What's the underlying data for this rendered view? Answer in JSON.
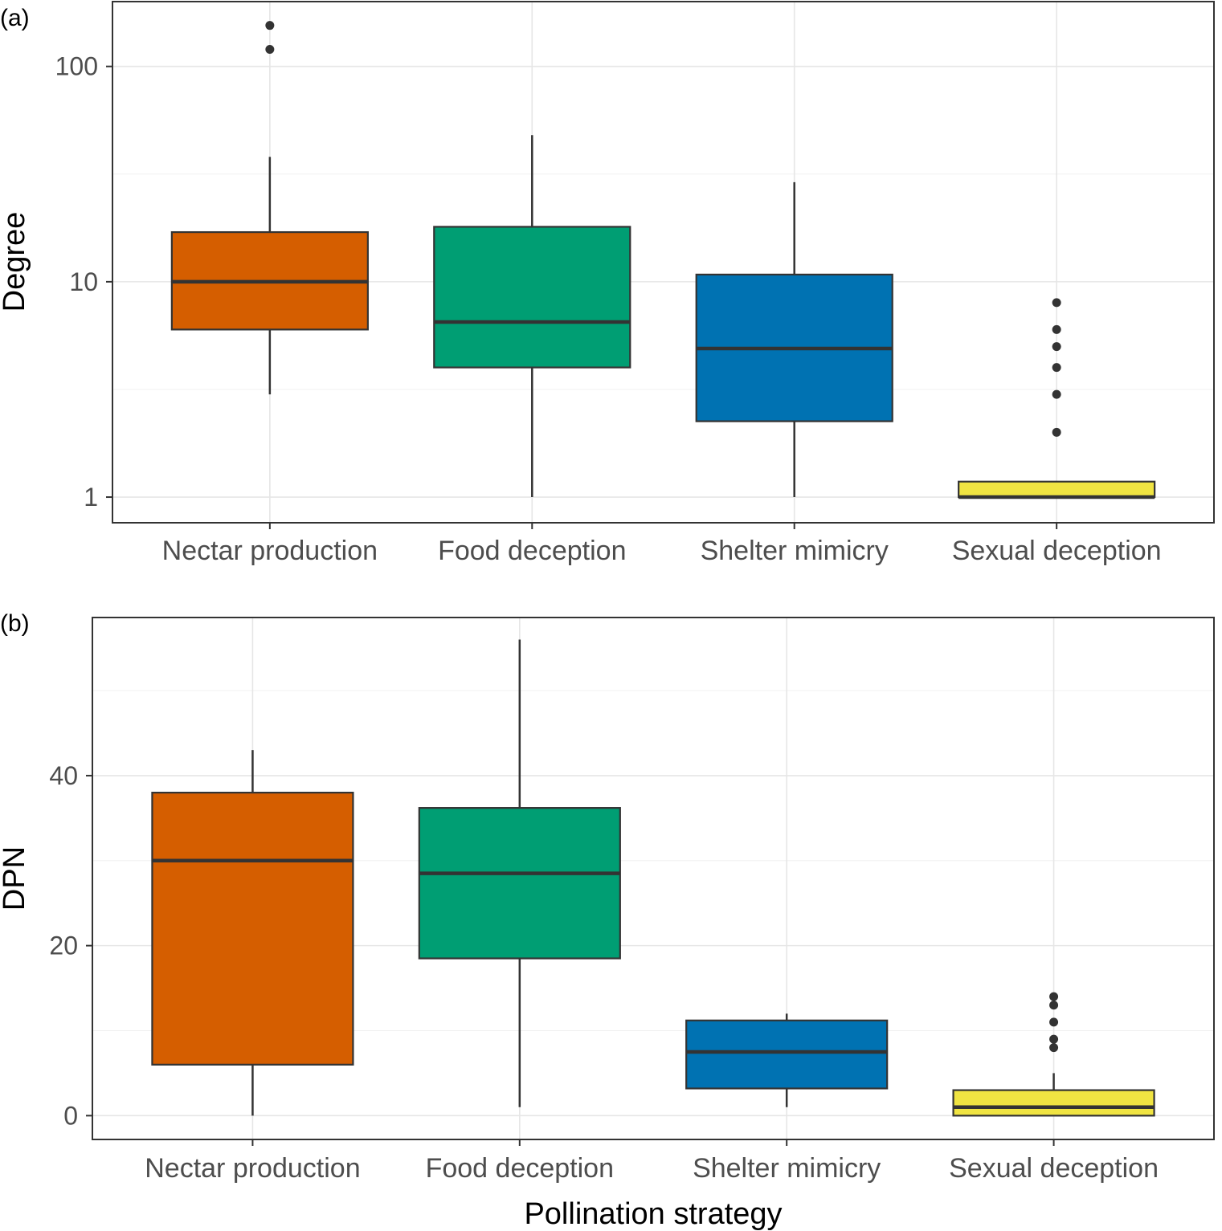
{
  "x_axis_title": "Pollination strategy",
  "colors": {
    "Nectar production": "#D55E00",
    "Food deception": "#009E73",
    "Shelter mimicry": "#0072B2",
    "Sexual deception": "#F0E442"
  },
  "chart_data": [
    {
      "type": "box",
      "panel_label": "(a)",
      "ylabel": "Degree",
      "xlabel": "",
      "y_scale": "log10",
      "ylim": [
        0.76,
        200
      ],
      "y_ticks": [
        1,
        10,
        100
      ],
      "y_tick_labels": [
        "1",
        "10",
        "100"
      ],
      "grid": true,
      "categories": [
        "Nectar production",
        "Food deception",
        "Shelter mimicry",
        "Sexual deception"
      ],
      "boxes": [
        {
          "category": "Nectar production",
          "whisker_low": 3,
          "q1": 6,
          "median": 10,
          "q3": 17,
          "whisker_high": 38,
          "outliers": [
            120,
            155
          ]
        },
        {
          "category": "Food deception",
          "whisker_low": 1,
          "q1": 4,
          "median": 6.5,
          "q3": 18,
          "whisker_high": 48,
          "outliers": []
        },
        {
          "category": "Shelter mimicry",
          "whisker_low": 1,
          "q1": 2.25,
          "median": 4.9,
          "q3": 10.8,
          "whisker_high": 29,
          "outliers": []
        },
        {
          "category": "Sexual deception",
          "whisker_low": 1,
          "q1": 1,
          "median": 1,
          "q3": 1.18,
          "whisker_high": 1.18,
          "outliers": [
            2,
            3,
            4,
            5,
            6,
            8
          ]
        }
      ]
    },
    {
      "type": "box",
      "panel_label": "(b)",
      "ylabel": "DPN",
      "xlabel": "Pollination strategy",
      "y_scale": "linear",
      "ylim": [
        -2.8,
        58.6
      ],
      "y_ticks": [
        0,
        20,
        40
      ],
      "y_tick_labels": [
        "0",
        "20",
        "40"
      ],
      "grid": true,
      "categories": [
        "Nectar production",
        "Food deception",
        "Shelter mimicry",
        "Sexual deception"
      ],
      "boxes": [
        {
          "category": "Nectar production",
          "whisker_low": 0,
          "q1": 6,
          "median": 30,
          "q3": 38,
          "whisker_high": 43,
          "outliers": []
        },
        {
          "category": "Food deception",
          "whisker_low": 1,
          "q1": 18.5,
          "median": 28.5,
          "q3": 36.2,
          "whisker_high": 56,
          "outliers": []
        },
        {
          "category": "Shelter mimicry",
          "whisker_low": 1,
          "q1": 3.2,
          "median": 7.5,
          "q3": 11.2,
          "whisker_high": 12,
          "outliers": []
        },
        {
          "category": "Sexual deception",
          "whisker_low": 0,
          "q1": 0,
          "median": 1,
          "q3": 3,
          "whisker_high": 5,
          "outliers": [
            8,
            9,
            11,
            13,
            14
          ]
        }
      ]
    }
  ]
}
